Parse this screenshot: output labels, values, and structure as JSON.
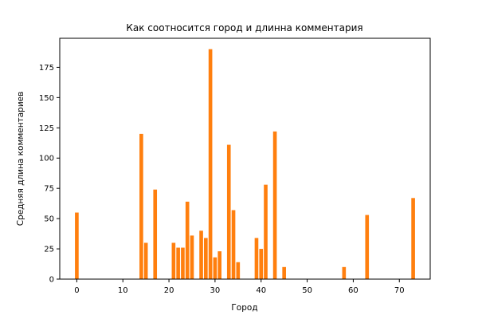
{
  "chart_data": {
    "type": "bar",
    "title": "Как соотносится город и длинна комментария",
    "xlabel": "Город",
    "ylabel": "Средняя длина комментариев",
    "xlim": [
      -3.7,
      76.7
    ],
    "ylim": [
      0,
      199
    ],
    "x_ticks": [
      0,
      10,
      20,
      30,
      40,
      50,
      60,
      70
    ],
    "y_ticks": [
      0,
      25,
      50,
      75,
      100,
      125,
      150,
      175
    ],
    "bar_color": "#ff7f0e",
    "bar_width": 0.8,
    "grid": false,
    "x": [
      0,
      14,
      15,
      17,
      21,
      22,
      23,
      24,
      25,
      27,
      28,
      29,
      30,
      31,
      33,
      34,
      35,
      39,
      40,
      41,
      43,
      45,
      58,
      63,
      73
    ],
    "values": [
      55,
      120,
      30,
      74,
      30,
      26,
      26,
      64,
      36,
      40,
      34,
      190,
      18,
      23,
      111,
      57,
      14,
      34,
      25,
      78,
      122,
      10,
      10,
      53,
      67
    ]
  }
}
